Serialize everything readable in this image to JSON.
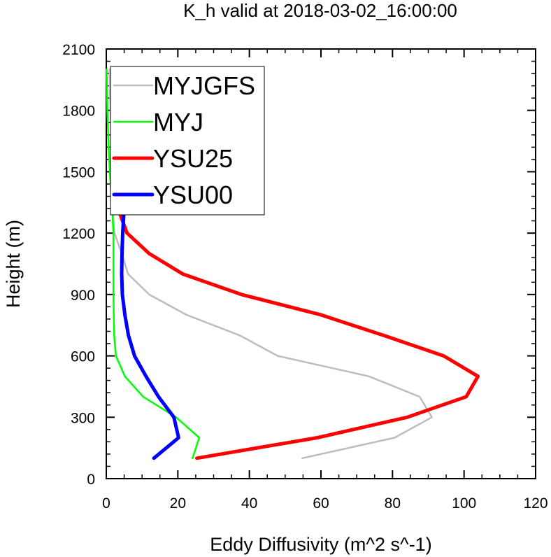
{
  "chart_data": {
    "type": "line",
    "title": "K_h valid at 2018-03-02_16:00:00",
    "xlabel": "Eddy Diffusivity (m^2 s^-1)",
    "ylabel": "Height (m)",
    "xlim": [
      0,
      120
    ],
    "ylim": [
      0,
      2100
    ],
    "xticks": [
      0,
      20,
      40,
      60,
      80,
      100,
      120
    ],
    "yticks": [
      0,
      300,
      600,
      900,
      1200,
      1500,
      1800,
      2100
    ],
    "grid": false,
    "legend_position": "top-left",
    "series": [
      {
        "name": "MYJGFS",
        "color": "#bdbdbd",
        "points": [
          [
            54.8,
            100
          ],
          [
            80.6,
            200
          ],
          [
            91.0,
            300
          ],
          [
            87.6,
            400
          ],
          [
            73.4,
            500
          ],
          [
            47.9,
            600
          ],
          [
            37.3,
            700
          ],
          [
            22.5,
            800
          ],
          [
            12.0,
            900
          ],
          [
            6.1,
            1000
          ],
          [
            4.3,
            1100
          ],
          [
            2.3,
            1200
          ],
          [
            1.9,
            1300
          ],
          [
            1.7,
            1400
          ],
          [
            1.6,
            1500
          ],
          [
            1.6,
            1600
          ],
          [
            1.4,
            1700
          ],
          [
            1.2,
            1800
          ],
          [
            1.0,
            1900
          ],
          [
            0.9,
            2000
          ]
        ],
        "width": 2.5
      },
      {
        "name": "MYJ",
        "color": "#00ff00",
        "points": [
          [
            24.1,
            100
          ],
          [
            26.0,
            200
          ],
          [
            19.5,
            300
          ],
          [
            10.3,
            400
          ],
          [
            5.2,
            500
          ],
          [
            2.7,
            600
          ],
          [
            2.2,
            700
          ],
          [
            2.1,
            800
          ],
          [
            2.0,
            900
          ],
          [
            2.0,
            1000
          ],
          [
            2.0,
            1100
          ],
          [
            2.0,
            1200
          ],
          [
            1.7,
            1300
          ],
          [
            1.3,
            1400
          ],
          [
            1.0,
            1500
          ],
          [
            0.7,
            1600
          ],
          [
            0.5,
            1700
          ],
          [
            0.3,
            1800
          ],
          [
            0.2,
            1900
          ],
          [
            0.1,
            2000
          ]
        ],
        "width": 2.5
      },
      {
        "name": "YSU25",
        "color": "#ff0000",
        "points": [
          [
            25.3,
            100
          ],
          [
            59.0,
            200
          ],
          [
            84.1,
            300
          ],
          [
            100.6,
            400
          ],
          [
            103.9,
            500
          ],
          [
            94.3,
            600
          ],
          [
            77.5,
            700
          ],
          [
            60.1,
            800
          ],
          [
            37.8,
            900
          ],
          [
            21.4,
            1000
          ],
          [
            12.0,
            1100
          ],
          [
            5.8,
            1200
          ],
          [
            3.7,
            1300
          ],
          [
            3.0,
            1400
          ],
          [
            2.9,
            1500
          ],
          [
            2.8,
            1600
          ],
          [
            2.7,
            1700
          ],
          [
            2.6,
            1800
          ],
          [
            2.5,
            1900
          ],
          [
            2.4,
            2000
          ]
        ],
        "width": 5
      },
      {
        "name": "YSU00",
        "color": "#0000ff",
        "points": [
          [
            13.3,
            100
          ],
          [
            20.2,
            200
          ],
          [
            18.9,
            300
          ],
          [
            14.6,
            400
          ],
          [
            11.1,
            500
          ],
          [
            7.9,
            600
          ],
          [
            6.2,
            700
          ],
          [
            5.2,
            800
          ],
          [
            4.5,
            900
          ],
          [
            4.3,
            1000
          ],
          [
            4.4,
            1100
          ],
          [
            4.6,
            1200
          ],
          [
            4.9,
            1300
          ],
          [
            5.0,
            1400
          ],
          [
            4.8,
            1500
          ],
          [
            4.6,
            1600
          ],
          [
            4.3,
            1700
          ],
          [
            3.9,
            1800
          ],
          [
            3.3,
            1900
          ],
          [
            2.7,
            2000
          ]
        ],
        "width": 5
      }
    ]
  }
}
